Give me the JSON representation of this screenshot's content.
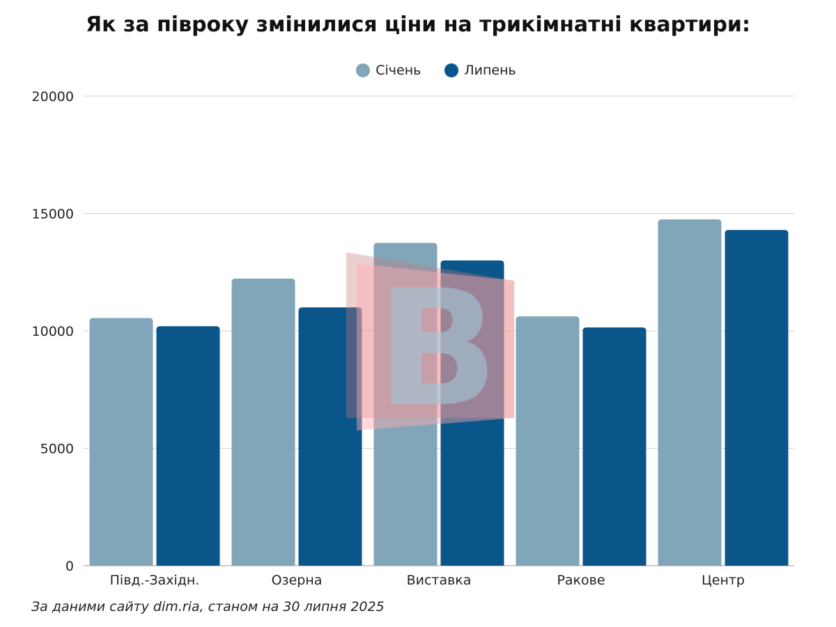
{
  "chart_data": {
    "type": "bar",
    "title": "Як за півроку змінилися ціни на трикімнатні квартири:",
    "categories": [
      "Півд.-Західн.",
      "Озерна",
      "Виставка",
      "Ракове",
      "Центр"
    ],
    "series": [
      {
        "name": "Січень",
        "color": "#82a6b9",
        "values": [
          10550,
          12230,
          13750,
          10620,
          14750
        ]
      },
      {
        "name": "Липень",
        "color": "#0a5589",
        "values": [
          10200,
          11000,
          13000,
          10150,
          14300
        ]
      }
    ],
    "ylim": [
      0,
      20000
    ],
    "yticks": [
      0,
      5000,
      10000,
      15000,
      20000
    ],
    "grid": true,
    "legend": "top-center",
    "xlabel": "",
    "ylabel": ""
  },
  "source": "За даними сайту dim.ria, станом на 30 липня 2025",
  "watermark": "В"
}
